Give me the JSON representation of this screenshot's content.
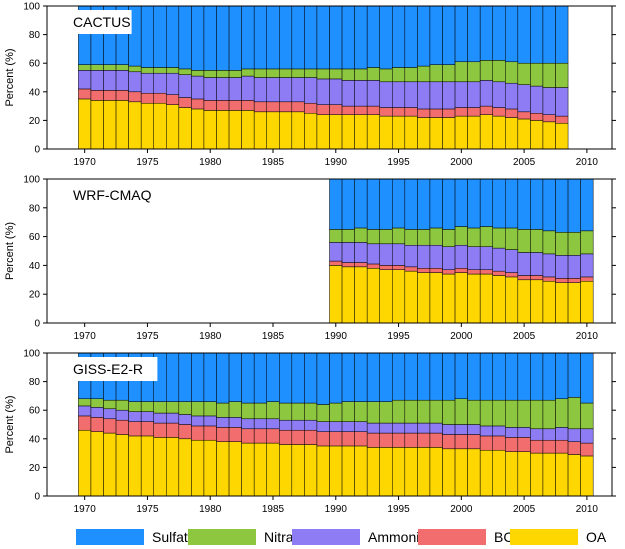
{
  "legend": {
    "items": [
      {
        "name": "Sulfate",
        "color": "#1e90ff"
      },
      {
        "name": "Nitrate",
        "color": "#8dc73f"
      },
      {
        "name": "Ammonium",
        "color": "#8e7cf5"
      },
      {
        "name": "BC",
        "color": "#f26d6d"
      },
      {
        "name": "OA",
        "color": "#ffd700"
      }
    ]
  },
  "chart_data": [
    {
      "type": "bar",
      "stacked": true,
      "title": "CACTUS",
      "ylabel": "Percent (%)",
      "xlabel": "",
      "ylim": [
        0,
        100
      ],
      "yticks": [
        0,
        20,
        40,
        60,
        80,
        100
      ],
      "xticks": [
        1970,
        1975,
        1980,
        1985,
        1990,
        1995,
        2000,
        2005,
        2010
      ],
      "xlim": [
        1967,
        2012
      ],
      "categories": [
        1970,
        1971,
        1972,
        1973,
        1974,
        1975,
        1976,
        1977,
        1978,
        1979,
        1980,
        1981,
        1982,
        1983,
        1984,
        1985,
        1986,
        1987,
        1988,
        1989,
        1990,
        1991,
        1992,
        1993,
        1994,
        1995,
        1996,
        1997,
        1998,
        1999,
        2000,
        2001,
        2002,
        2003,
        2004,
        2005,
        2006,
        2007,
        2008
      ],
      "series": [
        {
          "name": "OA",
          "values": [
            35,
            34,
            34,
            34,
            33,
            32,
            32,
            31,
            29,
            28,
            27,
            27,
            27,
            27,
            26,
            26,
            26,
            26,
            25,
            24,
            24,
            24,
            24,
            24,
            23,
            23,
            23,
            22,
            22,
            22,
            23,
            23,
            24,
            23,
            22,
            21,
            20,
            19,
            18
          ]
        },
        {
          "name": "BC",
          "values": [
            7,
            7,
            7,
            7,
            7,
            7,
            7,
            7,
            7,
            7,
            7,
            7,
            7,
            7,
            7,
            7,
            7,
            7,
            7,
            7,
            7,
            6,
            6,
            6,
            6,
            6,
            6,
            6,
            6,
            6,
            6,
            6,
            6,
            6,
            6,
            5,
            5,
            5,
            5
          ]
        },
        {
          "name": "Ammonium",
          "values": [
            13,
            14,
            14,
            14,
            14,
            14,
            14,
            15,
            16,
            16,
            16,
            16,
            16,
            17,
            17,
            17,
            17,
            17,
            18,
            18,
            18,
            18,
            18,
            18,
            18,
            18,
            18,
            19,
            19,
            19,
            18,
            18,
            18,
            18,
            18,
            19,
            19,
            19,
            20
          ]
        },
        {
          "name": "Nitrate",
          "values": [
            4,
            4,
            4,
            4,
            4,
            4,
            4,
            4,
            4,
            4,
            5,
            5,
            5,
            5,
            6,
            6,
            6,
            6,
            6,
            7,
            7,
            8,
            8,
            9,
            9,
            10,
            10,
            11,
            12,
            12,
            14,
            14,
            14,
            15,
            15,
            15,
            16,
            17,
            17
          ]
        },
        {
          "name": "Sulfate",
          "values": [
            41,
            41,
            41,
            41,
            42,
            43,
            43,
            43,
            44,
            45,
            45,
            45,
            45,
            44,
            44,
            44,
            44,
            44,
            44,
            44,
            44,
            44,
            44,
            43,
            44,
            43,
            43,
            42,
            41,
            41,
            39,
            39,
            38,
            38,
            39,
            40,
            40,
            40,
            40
          ]
        }
      ]
    },
    {
      "type": "bar",
      "stacked": true,
      "title": "WRF-CMAQ",
      "ylabel": "Percent (%)",
      "xlabel": "",
      "ylim": [
        0,
        100
      ],
      "yticks": [
        0,
        20,
        40,
        60,
        80,
        100
      ],
      "xticks": [
        1970,
        1975,
        1980,
        1985,
        1990,
        1995,
        2000,
        2005,
        2010
      ],
      "xlim": [
        1967,
        2012
      ],
      "categories": [
        1990,
        1991,
        1992,
        1993,
        1994,
        1995,
        1996,
        1997,
        1998,
        1999,
        2000,
        2001,
        2002,
        2003,
        2004,
        2005,
        2006,
        2007,
        2008,
        2009,
        2010
      ],
      "series": [
        {
          "name": "OA",
          "values": [
            40,
            39,
            39,
            38,
            37,
            37,
            36,
            35,
            35,
            34,
            35,
            34,
            34,
            33,
            32,
            30,
            30,
            29,
            28,
            28,
            29
          ]
        },
        {
          "name": "BC",
          "values": [
            3,
            3,
            3,
            3,
            3,
            3,
            3,
            3,
            3,
            3,
            3,
            3,
            3,
            3,
            3,
            3,
            3,
            3,
            3,
            3,
            3
          ]
        },
        {
          "name": "Ammonium",
          "values": [
            13,
            14,
            14,
            14,
            15,
            15,
            15,
            16,
            16,
            16,
            16,
            16,
            16,
            16,
            16,
            16,
            16,
            16,
            16,
            16,
            16
          ]
        },
        {
          "name": "Nitrate",
          "values": [
            9,
            9,
            10,
            10,
            10,
            11,
            11,
            11,
            12,
            12,
            13,
            13,
            14,
            14,
            15,
            16,
            16,
            16,
            16,
            16,
            16
          ]
        },
        {
          "name": "Sulfate",
          "values": [
            35,
            35,
            34,
            35,
            35,
            34,
            35,
            35,
            34,
            35,
            33,
            34,
            33,
            34,
            34,
            35,
            35,
            36,
            37,
            37,
            36
          ]
        }
      ]
    },
    {
      "type": "bar",
      "stacked": true,
      "title": "GISS-E2-R",
      "ylabel": "Percent (%)",
      "xlabel": "",
      "ylim": [
        0,
        100
      ],
      "yticks": [
        0,
        20,
        40,
        60,
        80,
        100
      ],
      "xticks": [
        1970,
        1975,
        1980,
        1985,
        1990,
        1995,
        2000,
        2005,
        2010
      ],
      "xlim": [
        1967,
        2012
      ],
      "categories": [
        1970,
        1971,
        1972,
        1973,
        1974,
        1975,
        1976,
        1977,
        1978,
        1979,
        1980,
        1981,
        1982,
        1983,
        1984,
        1985,
        1986,
        1987,
        1988,
        1989,
        1990,
        1991,
        1992,
        1993,
        1994,
        1995,
        1996,
        1997,
        1998,
        1999,
        2000,
        2001,
        2002,
        2003,
        2004,
        2005,
        2006,
        2007,
        2008,
        2009,
        2010
      ],
      "series": [
        {
          "name": "OA",
          "values": [
            46,
            45,
            44,
            43,
            42,
            42,
            41,
            41,
            40,
            39,
            39,
            38,
            38,
            37,
            37,
            37,
            36,
            36,
            36,
            35,
            35,
            35,
            35,
            34,
            34,
            34,
            34,
            34,
            34,
            33,
            33,
            33,
            32,
            32,
            31,
            31,
            30,
            30,
            30,
            29,
            28
          ]
        },
        {
          "name": "BC",
          "values": [
            10,
            10,
            10,
            10,
            10,
            10,
            10,
            10,
            10,
            10,
            10,
            10,
            10,
            10,
            10,
            10,
            10,
            10,
            10,
            10,
            10,
            10,
            10,
            10,
            10,
            10,
            10,
            10,
            10,
            10,
            10,
            10,
            10,
            10,
            10,
            10,
            9,
            9,
            9,
            9,
            9
          ]
        },
        {
          "name": "Ammonium",
          "values": [
            7,
            7,
            7,
            7,
            7,
            7,
            7,
            7,
            7,
            7,
            7,
            7,
            7,
            7,
            7,
            7,
            7,
            7,
            7,
            7,
            7,
            7,
            7,
            7,
            7,
            7,
            7,
            7,
            7,
            7,
            7,
            7,
            7,
            7,
            7,
            7,
            8,
            8,
            9,
            9,
            10
          ]
        },
        {
          "name": "Nitrate",
          "values": [
            5,
            6,
            6,
            7,
            7,
            7,
            8,
            8,
            9,
            10,
            10,
            10,
            11,
            11,
            11,
            12,
            12,
            12,
            12,
            12,
            13,
            14,
            14,
            15,
            15,
            16,
            16,
            16,
            16,
            17,
            18,
            17,
            18,
            18,
            19,
            19,
            20,
            20,
            20,
            22,
            18
          ]
        },
        {
          "name": "Sulfate",
          "values": [
            32,
            32,
            33,
            33,
            34,
            34,
            34,
            34,
            34,
            34,
            34,
            35,
            34,
            35,
            35,
            34,
            35,
            35,
            35,
            36,
            35,
            34,
            34,
            34,
            34,
            33,
            33,
            33,
            33,
            33,
            32,
            33,
            33,
            33,
            33,
            33,
            33,
            33,
            32,
            31,
            35
          ]
        }
      ]
    }
  ]
}
